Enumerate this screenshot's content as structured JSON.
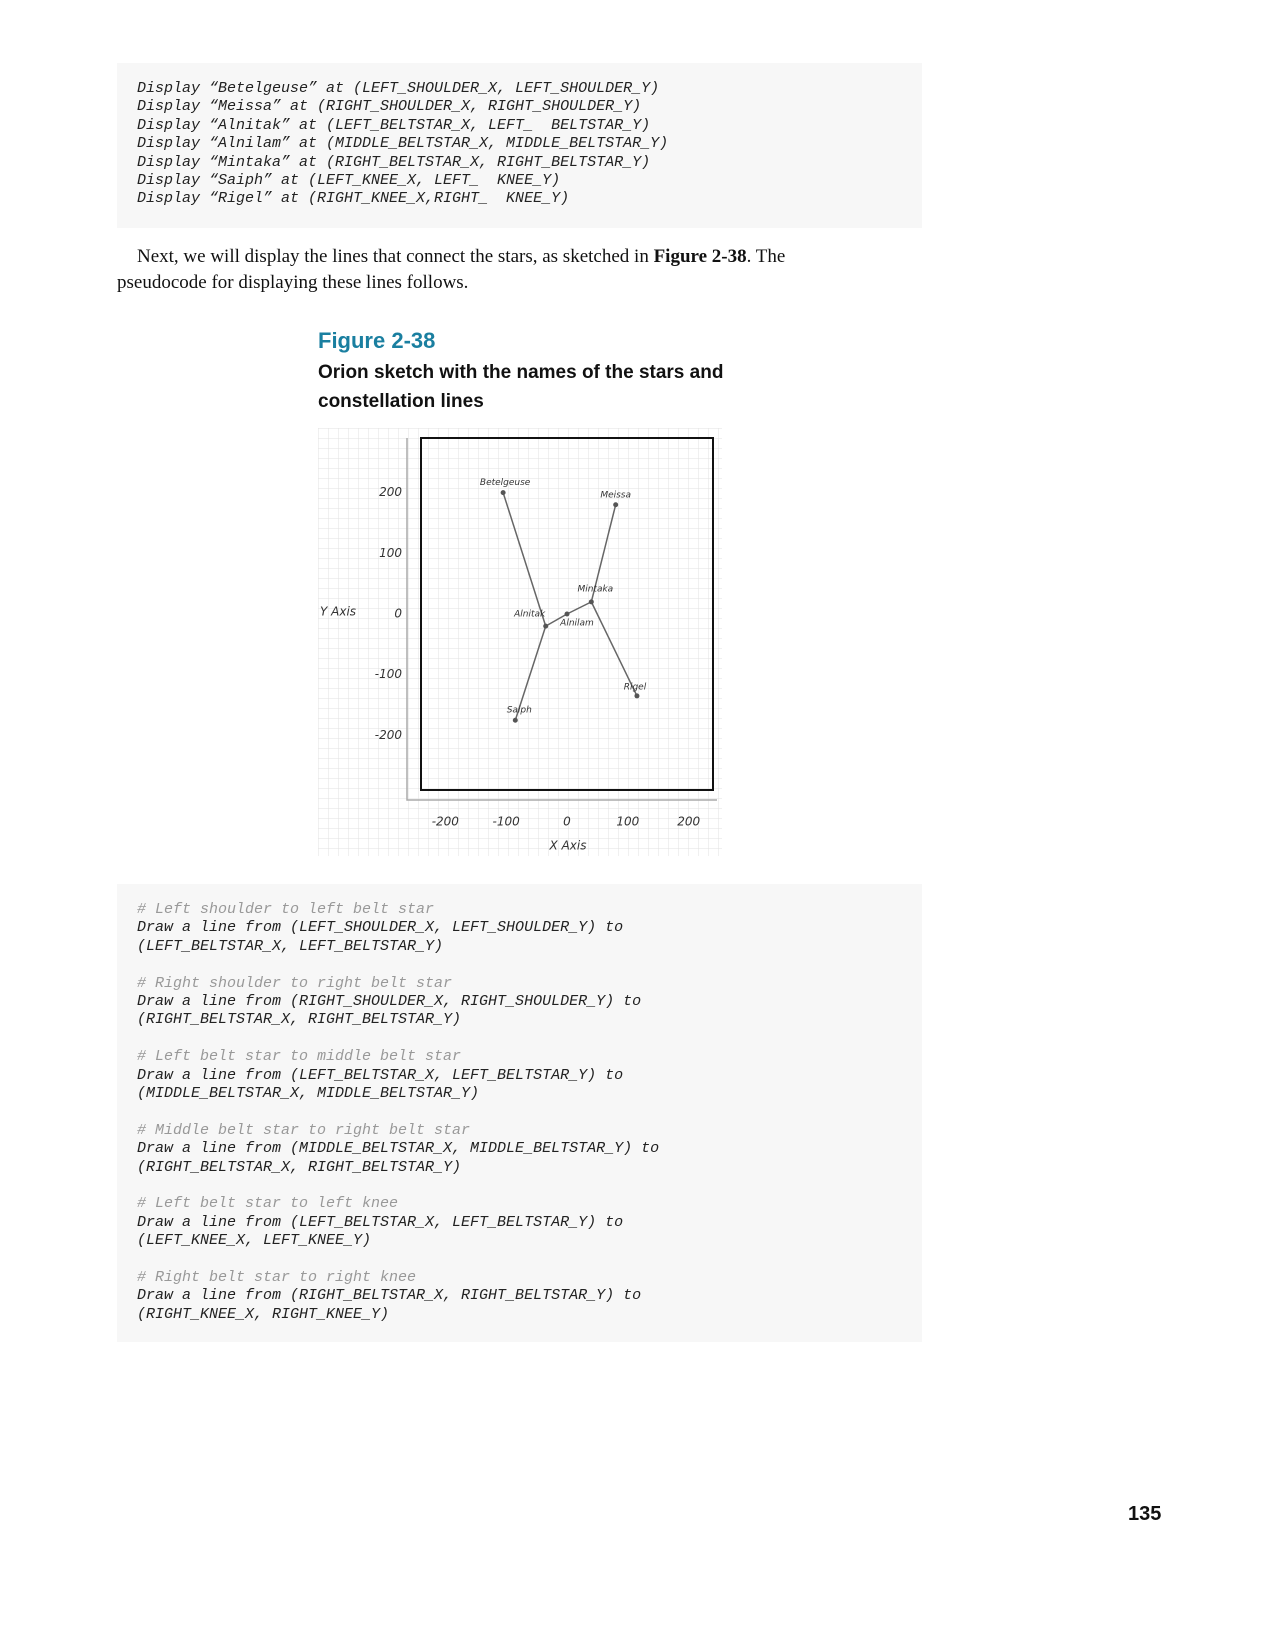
{
  "code_block_1": {
    "lines": [
      "Display “Betelgeuse” at (LEFT_SHOULDER_X, LEFT_SHOULDER_Y)",
      "Display “Meissa” at (RIGHT_SHOULDER_X, RIGHT_SHOULDER_Y)",
      "Display “Alnitak” at (LEFT_BELTSTAR_X, LEFT_  BELTSTAR_Y)",
      "Display “Alnilam” at (MIDDLE_BELTSTAR_X, MIDDLE_BELTSTAR_Y)",
      "Display “Mintaka” at (RIGHT_BELTSTAR_X, RIGHT_BELTSTAR_Y)",
      "Display “Saiph” at (LEFT_KNEE_X, LEFT_  KNEE_Y)",
      "Display “Rigel” at (RIGHT_KNEE_X,RIGHT_  KNEE_Y)"
    ]
  },
  "paragraph": {
    "segments": [
      "Next, we will display the lines that connect the stars, as sketched in ",
      "Figure 2-38",
      ". The pseudocode for displaying these lines follows."
    ]
  },
  "figure": {
    "label": "Figure 2-38",
    "caption": "Orion sketch with the names of the stars and constellation lines",
    "x_axis_label": "X Axis",
    "y_axis_label": "Y Axis",
    "xlim": [
      -240,
      240
    ],
    "ylim": [
      -290,
      290
    ],
    "xticks": [
      -200,
      -100,
      0,
      100,
      200
    ],
    "yticks": [
      200,
      100,
      0,
      -100,
      -200
    ],
    "stars": [
      {
        "name": "Betelgeuse",
        "x": -105,
        "y": 200
      },
      {
        "name": "Meissa",
        "x": 80,
        "y": 180
      },
      {
        "name": "Alnitak",
        "x": -35,
        "y": -20
      },
      {
        "name": "Alnilam",
        "x": 0,
        "y": 0
      },
      {
        "name": "Mintaka",
        "x": 40,
        "y": 20
      },
      {
        "name": "Saiph",
        "x": -85,
        "y": -175
      },
      {
        "name": "Rigel",
        "x": 115,
        "y": -135
      }
    ]
  },
  "code_block_2": {
    "groups": [
      {
        "comment": "# Left shoulder to left belt star",
        "lines": [
          "Draw a line from (LEFT_SHOULDER_X, LEFT_SHOULDER_Y) to",
          "(LEFT_BELTSTAR_X, LEFT_BELTSTAR_Y)"
        ]
      },
      {
        "comment": "# Right shoulder to right belt star",
        "lines": [
          "Draw a line from (RIGHT_SHOULDER_X, RIGHT_SHOULDER_Y) to",
          "(RIGHT_BELTSTAR_X, RIGHT_BELTSTAR_Y)"
        ]
      },
      {
        "comment": "# Left belt star to middle belt star",
        "lines": [
          "Draw a line from (LEFT_BELTSTAR_X, LEFT_BELTSTAR_Y) to",
          "(MIDDLE_BELTSTAR_X, MIDDLE_BELTSTAR_Y)"
        ]
      },
      {
        "comment": "# Middle belt star to right belt star",
        "lines": [
          "Draw a line from (MIDDLE_BELTSTAR_X, MIDDLE_BELTSTAR_Y) to",
          "(RIGHT_BELTSTAR_X, RIGHT_BELTSTAR_Y)"
        ]
      },
      {
        "comment": "# Left belt star to left knee",
        "lines": [
          "Draw a line from (LEFT_BELTSTAR_X, LEFT_BELTSTAR_Y) to",
          "(LEFT_KNEE_X, LEFT_KNEE_Y)"
        ]
      },
      {
        "comment": "# Right belt star to right knee",
        "lines": [
          "Draw a line from (RIGHT_BELTSTAR_X, RIGHT_BELTSTAR_Y) to",
          "(RIGHT_KNEE_X, RIGHT_KNEE_Y)"
        ]
      }
    ]
  },
  "page_number": "135"
}
